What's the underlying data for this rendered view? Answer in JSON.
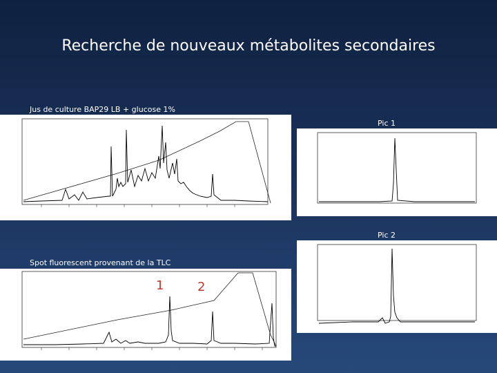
{
  "slide": {
    "title": "Recherche de nouveaux métabolites secondaires"
  },
  "captions": {
    "chart1": "Jus de culture BAP29 LB + glucose 1%",
    "pic1": "Pic 1",
    "pic2": "Pic 2",
    "chart2": "Spot fluorescent provenant de la TLC"
  },
  "annotations": {
    "peak_label_1": "1",
    "peak_label_2": "2"
  },
  "colors": {
    "background_top": "#0f2140",
    "background_bottom": "#26497a",
    "trace": "#000000",
    "annotation": "#c0392b"
  }
}
